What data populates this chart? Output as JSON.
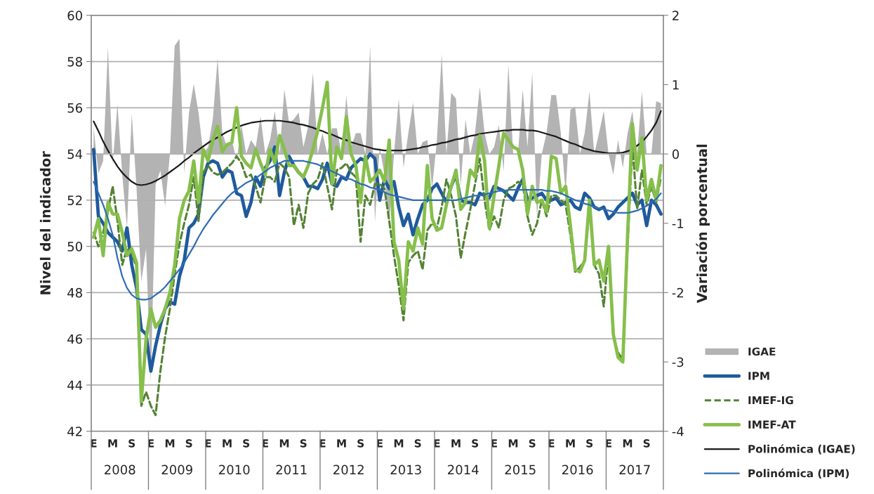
{
  "chart_data": {
    "type": "line",
    "ylabel": "Nivel del indicador",
    "y2label": "Variación porcentual",
    "categories": [
      "E",
      null,
      null,
      null,
      "M",
      null,
      null,
      null,
      "S",
      null,
      null,
      null,
      "E",
      null,
      null,
      null,
      "M",
      null,
      null,
      null,
      "S",
      null,
      null,
      null,
      "E",
      null,
      null,
      null,
      "M",
      null,
      null,
      null,
      "S",
      null,
      null,
      null,
      "E",
      null,
      null,
      null,
      "M",
      null,
      null,
      null,
      "S",
      null,
      null,
      null,
      "E",
      null,
      null,
      null,
      "M",
      null,
      null,
      null,
      "S",
      null,
      null,
      null,
      "E",
      null,
      null,
      null,
      "M",
      null,
      null,
      null,
      "S",
      null,
      null,
      null,
      "E",
      null,
      null,
      null,
      "M",
      null,
      null,
      null,
      "S",
      null,
      null,
      null,
      "E",
      null,
      null,
      null,
      "M",
      null,
      null,
      null,
      "S",
      null,
      null,
      null,
      "E",
      null,
      null,
      null,
      "M",
      null,
      null,
      null,
      "S",
      null,
      null,
      null,
      "E",
      null,
      null,
      null,
      "M",
      null,
      null,
      null,
      "S",
      null,
      null,
      null
    ],
    "annotations": [
      "2008",
      "2009",
      "2010",
      "2011",
      "2012",
      "2013",
      "2014",
      "2015",
      "2016",
      "2017"
    ],
    "ylim": [
      42,
      60
    ],
    "yticks": [
      42,
      44,
      46,
      48,
      50,
      52,
      54,
      56,
      58,
      60
    ],
    "y2lim": [
      -4,
      2
    ],
    "y2ticks": [
      -4,
      -3,
      -2,
      -1,
      0,
      1,
      2
    ],
    "grid": "y",
    "legend": "right",
    "series": [
      {
        "name": "IGAE",
        "type": "area",
        "axis": "y2",
        "color": "#b3b3b3",
        "values": [
          0.38,
          -0.28,
          -0.1,
          1.54,
          -0.14,
          0.72,
          -0.3,
          -1.06,
          0.58,
          -0.5,
          -1.84,
          -1.37,
          -3.3,
          -0.44,
          -0.24,
          -0.75,
          0.0,
          1.56,
          1.66,
          -0.28,
          0.6,
          1.01,
          0.6,
          0.0,
          0.1,
          0.5,
          1.38,
          0.3,
          0.1,
          0.2,
          -0.1,
          0.42,
          0.0,
          0.2,
          0.1,
          0.54,
          0.0,
          0.2,
          0.62,
          0.0,
          0.93,
          0.45,
          0.5,
          0.6,
          0.1,
          0.4,
          1.17,
          0.0,
          0.3,
          0.0,
          0.37,
          0.37,
          0.0,
          0.84,
          0.1,
          0.3,
          0.3,
          0.0,
          1.56,
          -0.98,
          0.1,
          -0.3,
          -1.02,
          0.0,
          0.8,
          -0.2,
          0.3,
          0.74,
          0.0,
          0.17,
          0.2,
          -0.5,
          0.2,
          1.44,
          0.0,
          0.88,
          0.8,
          -0.46,
          0.5,
          0.0,
          0.3,
          0.97,
          0.3,
          0.0,
          0.1,
          0.42,
          -0.25,
          1.29,
          0.0,
          0.0,
          0.93,
          0.1,
          1.17,
          -0.92,
          0.0,
          0.3,
          0.85,
          0.85,
          0.3,
          -0.57,
          0.64,
          0.68,
          0.0,
          0.3,
          0.9,
          0.0,
          0.3,
          0.62,
          0.0,
          -0.3,
          0.2,
          -0.2,
          0.3,
          0.62,
          0.0,
          0.9,
          0.0,
          0.0,
          0.76,
          0.73
        ]
      },
      {
        "name": "IPM",
        "color": "#1f5a9c",
        "values": [
          54.2,
          51.3,
          51.0,
          50.6,
          50.4,
          50.2,
          49.8,
          50.8,
          49.2,
          48.2,
          46.4,
          46.2,
          44.6,
          45.7,
          46.6,
          47.3,
          47.6,
          47.5,
          48.7,
          49.4,
          50.8,
          51.0,
          51.4,
          53.0,
          53.6,
          53.7,
          53.6,
          53.0,
          53.3,
          53.2,
          52.3,
          52.2,
          51.3,
          51.9,
          53.0,
          52.6,
          53.4,
          53.7,
          54.3,
          52.2,
          53.2,
          53.9,
          53.5,
          53.2,
          53.0,
          52.6,
          52.6,
          52.5,
          52.9,
          53.6,
          52.7,
          52.6,
          53.0,
          52.9,
          53.4,
          53.6,
          53.8,
          53.7,
          54.0,
          53.8,
          52.0,
          52.9,
          52.5,
          52.8,
          51.7,
          50.9,
          51.4,
          50.5,
          51.2,
          51.8,
          52.0,
          52.5,
          52.7,
          52.3,
          51.9,
          52.6,
          53.1,
          52.0,
          51.9,
          51.9,
          51.8,
          52.3,
          52.2,
          52.1,
          52.6,
          52.5,
          52.4,
          52.2,
          52.0,
          52.5,
          52.9,
          52.0,
          52.1,
          52.2,
          52.3,
          52.0,
          52.0,
          52.1,
          51.8,
          51.9,
          52.0,
          51.7,
          51.6,
          52.3,
          52.1,
          51.7,
          51.6,
          51.7,
          51.2,
          51.4,
          51.7,
          51.9,
          52.1,
          52.3,
          51.8,
          52.0,
          50.9,
          52.0,
          51.8,
          51.4
        ]
      },
      {
        "name": "IMEF-IG",
        "line_style": "dashed",
        "color": "#548235",
        "values": [
          50.6,
          50.0,
          50.6,
          51.5,
          52.6,
          51.1,
          49.2,
          49.9,
          49.7,
          49.1,
          43.1,
          43.7,
          43.1,
          42.7,
          44.6,
          46.1,
          47.3,
          48.8,
          50.1,
          51.0,
          51.8,
          53.0,
          51.1,
          53.2,
          53.5,
          53.2,
          53.1,
          53.2,
          53.4,
          53.6,
          53.9,
          53.6,
          53.0,
          53.1,
          52.6,
          51.9,
          53.0,
          53.0,
          52.8,
          53.6,
          53.4,
          53.0,
          50.9,
          51.8,
          50.8,
          52.3,
          52.7,
          52.9,
          53.6,
          52.6,
          51.6,
          53.3,
          53.4,
          53.6,
          53.2,
          53.0,
          50.2,
          52.2,
          51.8,
          52.7,
          52.7,
          52.5,
          51.1,
          49.6,
          48.3,
          46.8,
          49.3,
          49.6,
          49.8,
          49.0,
          50.7,
          51.0,
          50.8,
          51.7,
          52.9,
          52.2,
          51.3,
          49.5,
          50.6,
          51.6,
          52.7,
          53.8,
          52.0,
          50.7,
          51.3,
          50.8,
          52.0,
          52.5,
          52.6,
          52.8,
          52.7,
          51.3,
          50.5,
          51.0,
          52.0,
          51.3,
          52.2,
          52.2,
          52.0,
          51.8,
          50.5,
          48.9,
          49.1,
          49.4,
          51.8,
          49.2,
          48.8,
          47.4,
          49.8,
          46.1,
          45.4,
          45.1,
          50.0,
          54.4,
          51.6,
          53.3,
          51.8,
          52.6,
          51.9,
          53.0
        ]
      },
      {
        "name": "IMEF-AT",
        "color": "#86bf4b",
        "values": [
          50.4,
          51.2,
          49.6,
          51.9,
          51.4,
          51.4,
          50.6,
          49.6,
          49.9,
          49.3,
          43.3,
          46.0,
          47.3,
          46.5,
          46.8,
          47.3,
          48.0,
          49.2,
          51.2,
          52.0,
          52.4,
          53.7,
          51.9,
          54.2,
          53.7,
          54.6,
          55.2,
          54.1,
          54.4,
          54.5,
          56.0,
          53.9,
          53.6,
          53.4,
          54.2,
          53.6,
          53.1,
          54.2,
          53.6,
          54.8,
          54.2,
          53.5,
          53.5,
          53.2,
          53.0,
          53.5,
          54.2,
          55.0,
          56.0,
          57.1,
          52.7,
          54.3,
          53.8,
          55.6,
          54.0,
          53.5,
          51.9,
          53.9,
          52.8,
          53.0,
          53.3,
          52.8,
          54.6,
          50.2,
          49.4,
          47.3,
          50.2,
          49.8,
          50.8,
          50.1,
          53.5,
          51.2,
          50.7,
          50.8,
          51.8,
          52.6,
          53.3,
          51.6,
          51.9,
          53.3,
          53.0,
          54.8,
          53.7,
          50.8,
          52.2,
          53.5,
          54.9,
          54.6,
          54.3,
          54.2,
          53.3,
          51.4,
          52.6,
          51.9,
          52.0,
          51.5,
          53.9,
          53.8,
          52.3,
          52.6,
          50.9,
          49.0,
          48.9,
          49.4,
          52.0,
          49.2,
          49.4,
          48.5,
          50.0,
          46.2,
          45.2,
          45.0,
          50.5,
          55.3,
          53.3,
          54.7,
          52.0,
          52.9,
          52.0,
          53.5
        ]
      },
      {
        "name": "Polinómica (IGAE)",
        "axis": "y2",
        "color": "#1a1a1a",
        "values": [
          0.47,
          0.33,
          0.18,
          0.05,
          -0.07,
          -0.18,
          -0.27,
          -0.34,
          -0.4,
          -0.44,
          -0.45,
          -0.44,
          -0.42,
          -0.39,
          -0.35,
          -0.31,
          -0.26,
          -0.21,
          -0.16,
          -0.1,
          -0.05,
          0.01,
          0.06,
          0.11,
          0.16,
          0.2,
          0.24,
          0.28,
          0.32,
          0.35,
          0.38,
          0.41,
          0.43,
          0.45,
          0.46,
          0.47,
          0.48,
          0.48,
          0.48,
          0.48,
          0.47,
          0.46,
          0.45,
          0.43,
          0.42,
          0.4,
          0.38,
          0.35,
          0.33,
          0.3,
          0.28,
          0.25,
          0.22,
          0.2,
          0.17,
          0.15,
          0.13,
          0.11,
          0.09,
          0.07,
          0.06,
          0.05,
          0.05,
          0.05,
          0.05,
          0.05,
          0.06,
          0.07,
          0.08,
          0.1,
          0.11,
          0.13,
          0.14,
          0.16,
          0.17,
          0.19,
          0.21,
          0.22,
          0.24,
          0.26,
          0.27,
          0.29,
          0.3,
          0.31,
          0.32,
          0.33,
          0.34,
          0.34,
          0.35,
          0.35,
          0.35,
          0.34,
          0.34,
          0.33,
          0.31,
          0.29,
          0.27,
          0.25,
          0.22,
          0.19,
          0.16,
          0.14,
          0.11,
          0.08,
          0.06,
          0.04,
          0.03,
          0.02,
          0.01,
          0.01,
          0.01,
          0.02,
          0.04,
          0.07,
          0.12,
          0.17,
          0.25,
          0.34,
          0.45,
          0.62
        ]
      },
      {
        "name": "Polinómica (IPM)",
        "color": "#2e6db4",
        "values": [
          52.8,
          52.3,
          51.8,
          51.2,
          50.5,
          49.5,
          48.7,
          48.2,
          47.9,
          47.75,
          47.7,
          47.7,
          47.75,
          47.9,
          48.05,
          48.25,
          48.5,
          48.75,
          49.0,
          49.3,
          49.65,
          50.0,
          50.4,
          50.75,
          51.05,
          51.35,
          51.6,
          51.85,
          52.1,
          52.3,
          52.45,
          52.6,
          52.75,
          52.85,
          52.95,
          53.1,
          53.25,
          53.4,
          53.5,
          53.6,
          53.7,
          53.7,
          53.7,
          53.7,
          53.7,
          53.65,
          53.6,
          53.55,
          53.45,
          53.35,
          53.25,
          53.15,
          53.05,
          52.95,
          52.9,
          52.8,
          52.7,
          52.65,
          52.55,
          52.5,
          52.45,
          52.35,
          52.25,
          52.2,
          52.15,
          52.1,
          52.05,
          52.0,
          52.0,
          52.0,
          52.0,
          52.0,
          52.0,
          52.0,
          52.0,
          52.0,
          52.0,
          52.05,
          52.1,
          52.15,
          52.2,
          52.2,
          52.25,
          52.3,
          52.35,
          52.4,
          52.4,
          52.45,
          52.45,
          52.45,
          52.45,
          52.45,
          52.45,
          52.45,
          52.45,
          52.4,
          52.4,
          52.35,
          52.3,
          52.2,
          52.1,
          52.0,
          51.95,
          51.85,
          51.8,
          51.7,
          51.65,
          51.6,
          51.55,
          51.5,
          51.45,
          51.45,
          51.45,
          51.5,
          51.55,
          51.65,
          51.75,
          51.9,
          52.05,
          52.3
        ]
      }
    ]
  }
}
